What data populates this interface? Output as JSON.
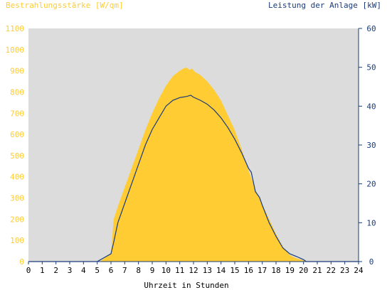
{
  "colors": {
    "irradiance": "#ffcc33",
    "power": "#1a3b7a",
    "plot_bg": "#dcdcdc",
    "axis": "#1a3b7a",
    "x_text": "#000000"
  },
  "chart_data": {
    "type": "area",
    "title_left": "Bestrahlungsstärke [W/qm]",
    "title_right": "Leistung der Anlage [kW]",
    "xlabel": "Uhrzeit in Stunden",
    "xlim": [
      0,
      24
    ],
    "x_ticks": [
      "0",
      "1",
      "2",
      "3",
      "4",
      "5",
      "6",
      "7",
      "8",
      "9",
      "10",
      "11",
      "12",
      "13",
      "14",
      "15",
      "16",
      "17",
      "18",
      "19",
      "20",
      "21",
      "22",
      "23",
      "24"
    ],
    "y_left": {
      "ylim": [
        0,
        1100
      ],
      "ticks": [
        "0",
        "100",
        "200",
        "300",
        "400",
        "500",
        "600",
        "700",
        "800",
        "900",
        "1000",
        "1100"
      ]
    },
    "y_right": {
      "ylim": [
        0,
        60
      ],
      "ticks": [
        "0",
        "10",
        "20",
        "30",
        "40",
        "50",
        "60"
      ]
    },
    "grid": false,
    "series": [
      {
        "name": "Bestrahlungsstärke [W/qm]",
        "type": "area",
        "axis": "left",
        "x": [
          0,
          5.2,
          5.6,
          6.0,
          6.1,
          6.2,
          6.5,
          7.0,
          7.5,
          8.0,
          8.5,
          9.0,
          9.5,
          10.0,
          10.5,
          11.0,
          11.3,
          11.5,
          11.7,
          11.9,
          12.1,
          12.5,
          13.0,
          13.5,
          14.0,
          14.5,
          15.0,
          15.5,
          15.8,
          16.0,
          16.5,
          17.0,
          17.5,
          18.0,
          18.5,
          19.0,
          19.5,
          20.0,
          20.3,
          24
        ],
        "y": [
          0,
          0,
          20,
          40,
          120,
          200,
          260,
          350,
          440,
          530,
          620,
          700,
          770,
          830,
          875,
          900,
          912,
          915,
          905,
          910,
          895,
          880,
          850,
          810,
          760,
          690,
          620,
          530,
          470,
          430,
          340,
          270,
          200,
          130,
          70,
          30,
          15,
          5,
          0,
          0
        ]
      },
      {
        "name": "Leistung der Anlage [kW]",
        "type": "line",
        "axis": "right",
        "x": [
          0,
          5.0,
          5.5,
          6.0,
          6.2,
          6.5,
          7.0,
          7.5,
          8.0,
          8.5,
          9.0,
          9.5,
          10.0,
          10.5,
          11.0,
          11.5,
          11.8,
          12.0,
          12.5,
          13.0,
          13.5,
          14.0,
          14.5,
          15.0,
          15.5,
          16.0,
          16.2,
          16.5,
          16.8,
          17.0,
          17.5,
          18.0,
          18.5,
          19.0,
          19.5,
          20.0,
          20.2,
          24
        ],
        "y": [
          0,
          0,
          1,
          2,
          5,
          10,
          15,
          20,
          25,
          30,
          34,
          37,
          40,
          41.5,
          42.2,
          42.5,
          42.8,
          42.3,
          41.5,
          40.5,
          39,
          37,
          34.5,
          31.5,
          28,
          24,
          23,
          18,
          16.5,
          14.5,
          10,
          6.5,
          3.5,
          2,
          1.3,
          0.5,
          0,
          0
        ]
      }
    ]
  }
}
